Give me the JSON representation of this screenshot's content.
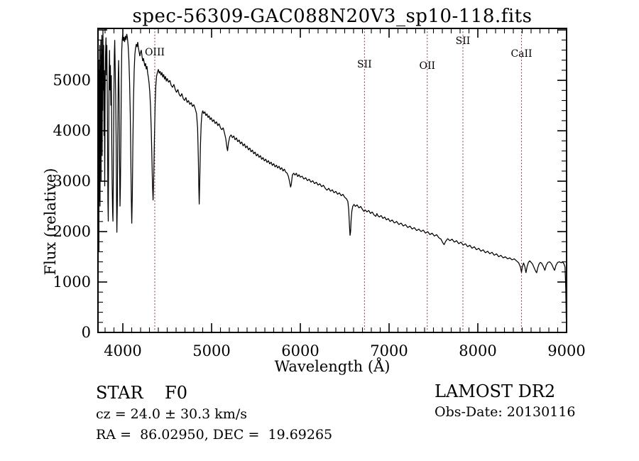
{
  "plot": {
    "title": "spec-56309-GAC088N20V3_sp10-118.fits",
    "xlabel": "Wavelength (Å)",
    "ylabel": "Flux (relative)"
  },
  "info": {
    "class_line": "STAR    F0",
    "survey_line": "LAMOST DR2",
    "cz_line": "cz = 24.0 ± 30.3 km/s",
    "obsdate_line": "Obs-Date: 20130116",
    "radec_line": "RA =  86.02950, DEC =  19.69265"
  },
  "colors": {
    "spectrum": "#000000",
    "axis": "#000000",
    "marker_line": "#8a4040",
    "marker_text": "#000000",
    "background": "#ffffff"
  },
  "chart_data": {
    "type": "line",
    "title": "spec-56309-GAC088N20V3_sp10-118.fits",
    "xlabel": "Wavelength (Å)",
    "ylabel": "Flux (relative)",
    "xlim": [
      3720,
      9000
    ],
    "ylim": [
      0,
      6030
    ],
    "x_ticks": [
      4000,
      5000,
      6000,
      7000,
      8000,
      9000
    ],
    "x_minor_step": 100,
    "y_ticks": [
      0,
      1000,
      2000,
      3000,
      4000,
      5000
    ],
    "y_minor_step": 200,
    "grid": false,
    "legend": null,
    "line_markers": [
      {
        "label": "OIII",
        "wavelength": 4360,
        "label_y": 78
      },
      {
        "label": "SII",
        "wavelength": 6723,
        "label_y": 95
      },
      {
        "label": "OII",
        "wavelength": 7430,
        "label_y": 97
      },
      {
        "label": "SII",
        "wavelength": 7832,
        "label_y": 62
      },
      {
        "label": "CaII",
        "wavelength": 8492,
        "label_y": 80
      }
    ],
    "spectrum": [
      [
        3720,
        3600
      ],
      [
        3722,
        1250
      ],
      [
        3724,
        4800
      ],
      [
        3726,
        2000
      ],
      [
        3728,
        5400
      ],
      [
        3730,
        1600
      ],
      [
        3732,
        4400
      ],
      [
        3734,
        2600
      ],
      [
        3736,
        5200
      ],
      [
        3738,
        3200
      ],
      [
        3740,
        5700
      ],
      [
        3743,
        2500
      ],
      [
        3746,
        5300
      ],
      [
        3749,
        3800
      ],
      [
        3752,
        5800
      ],
      [
        3755,
        3000
      ],
      [
        3758,
        5500
      ],
      [
        3761,
        4100
      ],
      [
        3764,
        5900
      ],
      [
        3767,
        3500
      ],
      [
        3770,
        5600
      ],
      [
        3773,
        4400
      ],
      [
        3776,
        6000
      ],
      [
        3780,
        4800
      ],
      [
        3784,
        5700
      ],
      [
        3788,
        3900
      ],
      [
        3792,
        5200
      ],
      [
        3796,
        2900
      ],
      [
        3800,
        4600
      ],
      [
        3805,
        5500
      ],
      [
        3810,
        5850
      ],
      [
        3815,
        5100
      ],
      [
        3820,
        5700
      ],
      [
        3826,
        4300
      ],
      [
        3832,
        2600
      ],
      [
        3836,
        2200
      ],
      [
        3840,
        3600
      ],
      [
        3845,
        5000
      ],
      [
        3850,
        5600
      ],
      [
        3855,
        4800
      ],
      [
        3860,
        5300
      ],
      [
        3865,
        4500
      ],
      [
        3870,
        5100
      ],
      [
        3875,
        3800
      ],
      [
        3880,
        2900
      ],
      [
        3885,
        2400
      ],
      [
        3889,
        2200
      ],
      [
        3894,
        3400
      ],
      [
        3899,
        4700
      ],
      [
        3904,
        5500
      ],
      [
        3909,
        5800
      ],
      [
        3914,
        5200
      ],
      [
        3919,
        4700
      ],
      [
        3924,
        3900
      ],
      [
        3929,
        2700
      ],
      [
        3933,
        1980
      ],
      [
        3938,
        2600
      ],
      [
        3943,
        4000
      ],
      [
        3948,
        5000
      ],
      [
        3953,
        5400
      ],
      [
        3958,
        4600
      ],
      [
        3963,
        3400
      ],
      [
        3968,
        2500
      ],
      [
        3973,
        2900
      ],
      [
        3978,
        3900
      ],
      [
        3983,
        5000
      ],
      [
        3988,
        5600
      ],
      [
        3993,
        5800
      ],
      [
        3998,
        5900
      ],
      [
        4005,
        5780
      ],
      [
        4012,
        5860
      ],
      [
        4020,
        5760
      ],
      [
        4028,
        5880
      ],
      [
        4036,
        5800
      ],
      [
        4044,
        5920
      ],
      [
        4052,
        5840
      ],
      [
        4060,
        5680
      ],
      [
        4068,
        5420
      ],
      [
        4076,
        4980
      ],
      [
        4084,
        4300
      ],
      [
        4090,
        3400
      ],
      [
        4096,
        2600
      ],
      [
        4101,
        2160
      ],
      [
        4107,
        2750
      ],
      [
        4113,
        3700
      ],
      [
        4120,
        4600
      ],
      [
        4128,
        5200
      ],
      [
        4136,
        5520
      ],
      [
        4144,
        5650
      ],
      [
        4152,
        5720
      ],
      [
        4160,
        5660
      ],
      [
        4168,
        5760
      ],
      [
        4176,
        5640
      ],
      [
        4184,
        5560
      ],
      [
        4192,
        5480
      ],
      [
        4200,
        5560
      ],
      [
        4208,
        5600
      ],
      [
        4216,
        5480
      ],
      [
        4224,
        5380
      ],
      [
        4232,
        5440
      ],
      [
        4240,
        5360
      ],
      [
        4248,
        5280
      ],
      [
        4256,
        5340
      ],
      [
        4264,
        5220
      ],
      [
        4272,
        5280
      ],
      [
        4280,
        5140
      ],
      [
        4288,
        5060
      ],
      [
        4296,
        4940
      ],
      [
        4304,
        4760
      ],
      [
        4312,
        4480
      ],
      [
        4320,
        4040
      ],
      [
        4328,
        3420
      ],
      [
        4334,
        2920
      ],
      [
        4341,
        2620
      ],
      [
        4348,
        3080
      ],
      [
        4356,
        3840
      ],
      [
        4364,
        4520
      ],
      [
        4372,
        4900
      ],
      [
        4380,
        5080
      ],
      [
        4390,
        5160
      ],
      [
        4400,
        5220
      ],
      [
        4410,
        5140
      ],
      [
        4420,
        5180
      ],
      [
        4430,
        5100
      ],
      [
        4440,
        5160
      ],
      [
        4450,
        5060
      ],
      [
        4460,
        5120
      ],
      [
        4470,
        5020
      ],
      [
        4480,
        5080
      ],
      [
        4490,
        4980
      ],
      [
        4500,
        5040
      ],
      [
        4515,
        4960
      ],
      [
        4530,
        5000
      ],
      [
        4545,
        4900
      ],
      [
        4560,
        4860
      ],
      [
        4575,
        4920
      ],
      [
        4590,
        4820
      ],
      [
        4605,
        4760
      ],
      [
        4620,
        4820
      ],
      [
        4635,
        4720
      ],
      [
        4650,
        4680
      ],
      [
        4665,
        4740
      ],
      [
        4680,
        4640
      ],
      [
        4695,
        4600
      ],
      [
        4710,
        4660
      ],
      [
        4725,
        4560
      ],
      [
        4740,
        4600
      ],
      [
        4755,
        4520
      ],
      [
        4770,
        4560
      ],
      [
        4785,
        4480
      ],
      [
        4800,
        4520
      ],
      [
        4815,
        4440
      ],
      [
        4830,
        4340
      ],
      [
        4842,
        4060
      ],
      [
        4850,
        3480
      ],
      [
        4856,
        2900
      ],
      [
        4861,
        2540
      ],
      [
        4867,
        3060
      ],
      [
        4874,
        3700
      ],
      [
        4882,
        4120
      ],
      [
        4890,
        4320
      ],
      [
        4900,
        4400
      ],
      [
        4912,
        4340
      ],
      [
        4924,
        4380
      ],
      [
        4936,
        4300
      ],
      [
        4948,
        4340
      ],
      [
        4960,
        4260
      ],
      [
        4972,
        4300
      ],
      [
        4984,
        4220
      ],
      [
        4996,
        4260
      ],
      [
        5010,
        4180
      ],
      [
        5025,
        4220
      ],
      [
        5040,
        4140
      ],
      [
        5055,
        4180
      ],
      [
        5070,
        4100
      ],
      [
        5085,
        4140
      ],
      [
        5100,
        4060
      ],
      [
        5115,
        4020
      ],
      [
        5130,
        4060
      ],
      [
        5145,
        3960
      ],
      [
        5160,
        3840
      ],
      [
        5172,
        3680
      ],
      [
        5180,
        3600
      ],
      [
        5190,
        3760
      ],
      [
        5205,
        3880
      ],
      [
        5220,
        3920
      ],
      [
        5235,
        3860
      ],
      [
        5250,
        3900
      ],
      [
        5265,
        3820
      ],
      [
        5280,
        3860
      ],
      [
        5295,
        3780
      ],
      [
        5310,
        3820
      ],
      [
        5325,
        3740
      ],
      [
        5340,
        3780
      ],
      [
        5355,
        3700
      ],
      [
        5370,
        3740
      ],
      [
        5385,
        3660
      ],
      [
        5400,
        3700
      ],
      [
        5415,
        3620
      ],
      [
        5430,
        3660
      ],
      [
        5445,
        3580
      ],
      [
        5460,
        3620
      ],
      [
        5475,
        3540
      ],
      [
        5490,
        3580
      ],
      [
        5505,
        3500
      ],
      [
        5520,
        3540
      ],
      [
        5535,
        3470
      ],
      [
        5550,
        3510
      ],
      [
        5565,
        3430
      ],
      [
        5580,
        3470
      ],
      [
        5595,
        3400
      ],
      [
        5610,
        3440
      ],
      [
        5625,
        3370
      ],
      [
        5640,
        3410
      ],
      [
        5655,
        3340
      ],
      [
        5670,
        3380
      ],
      [
        5685,
        3310
      ],
      [
        5700,
        3350
      ],
      [
        5715,
        3280
      ],
      [
        5730,
        3320
      ],
      [
        5745,
        3260
      ],
      [
        5760,
        3300
      ],
      [
        5775,
        3230
      ],
      [
        5790,
        3270
      ],
      [
        5805,
        3200
      ],
      [
        5820,
        3240
      ],
      [
        5835,
        3180
      ],
      [
        5850,
        3160
      ],
      [
        5865,
        3100
      ],
      [
        5880,
        2980
      ],
      [
        5890,
        2880
      ],
      [
        5898,
        2940
      ],
      [
        5910,
        3120
      ],
      [
        5925,
        3160
      ],
      [
        5940,
        3120
      ],
      [
        5955,
        3160
      ],
      [
        5970,
        3090
      ],
      [
        5985,
        3130
      ],
      [
        6000,
        3080
      ],
      [
        6020,
        3100
      ],
      [
        6040,
        3040
      ],
      [
        6060,
        3070
      ],
      [
        6080,
        3010
      ],
      [
        6100,
        3040
      ],
      [
        6120,
        2980
      ],
      [
        6140,
        3010
      ],
      [
        6160,
        2950
      ],
      [
        6180,
        2980
      ],
      [
        6200,
        2920
      ],
      [
        6220,
        2950
      ],
      [
        6240,
        2890
      ],
      [
        6260,
        2920
      ],
      [
        6280,
        2860
      ],
      [
        6300,
        2820
      ],
      [
        6320,
        2860
      ],
      [
        6340,
        2800
      ],
      [
        6360,
        2830
      ],
      [
        6380,
        2770
      ],
      [
        6400,
        2800
      ],
      [
        6420,
        2740
      ],
      [
        6440,
        2770
      ],
      [
        6460,
        2710
      ],
      [
        6480,
        2740
      ],
      [
        6500,
        2680
      ],
      [
        6520,
        2650
      ],
      [
        6535,
        2600
      ],
      [
        6545,
        2440
      ],
      [
        6553,
        2150
      ],
      [
        6560,
        1920
      ],
      [
        6566,
        2000
      ],
      [
        6572,
        2220
      ],
      [
        6580,
        2400
      ],
      [
        6590,
        2500
      ],
      [
        6605,
        2540
      ],
      [
        6620,
        2500
      ],
      [
        6640,
        2530
      ],
      [
        6660,
        2470
      ],
      [
        6680,
        2500
      ],
      [
        6700,
        2440
      ],
      [
        6717,
        2400
      ],
      [
        6731,
        2430
      ],
      [
        6750,
        2390
      ],
      [
        6770,
        2420
      ],
      [
        6790,
        2360
      ],
      [
        6810,
        2390
      ],
      [
        6830,
        2330
      ],
      [
        6850,
        2300
      ],
      [
        6862,
        2360
      ],
      [
        6872,
        2320
      ],
      [
        6890,
        2290
      ],
      [
        6910,
        2320
      ],
      [
        6930,
        2260
      ],
      [
        6950,
        2290
      ],
      [
        6970,
        2230
      ],
      [
        6990,
        2260
      ],
      [
        7010,
        2200
      ],
      [
        7035,
        2230
      ],
      [
        7060,
        2170
      ],
      [
        7085,
        2200
      ],
      [
        7110,
        2140
      ],
      [
        7135,
        2170
      ],
      [
        7160,
        2110
      ],
      [
        7185,
        2140
      ],
      [
        7210,
        2080
      ],
      [
        7235,
        2110
      ],
      [
        7260,
        2050
      ],
      [
        7285,
        2080
      ],
      [
        7310,
        2020
      ],
      [
        7335,
        2050
      ],
      [
        7360,
        2000
      ],
      [
        7385,
        2030
      ],
      [
        7410,
        1970
      ],
      [
        7435,
        2000
      ],
      [
        7460,
        1940
      ],
      [
        7485,
        1970
      ],
      [
        7510,
        1910
      ],
      [
        7535,
        1940
      ],
      [
        7560,
        1880
      ],
      [
        7585,
        1850
      ],
      [
        7605,
        1780
      ],
      [
        7620,
        1740
      ],
      [
        7635,
        1800
      ],
      [
        7660,
        1860
      ],
      [
        7685,
        1820
      ],
      [
        7710,
        1850
      ],
      [
        7735,
        1790
      ],
      [
        7760,
        1820
      ],
      [
        7785,
        1760
      ],
      [
        7810,
        1790
      ],
      [
        7835,
        1730
      ],
      [
        7860,
        1760
      ],
      [
        7885,
        1700
      ],
      [
        7910,
        1730
      ],
      [
        7935,
        1670
      ],
      [
        7960,
        1700
      ],
      [
        7985,
        1640
      ],
      [
        8010,
        1670
      ],
      [
        8035,
        1610
      ],
      [
        8060,
        1640
      ],
      [
        8085,
        1580
      ],
      [
        8110,
        1610
      ],
      [
        8135,
        1560
      ],
      [
        8160,
        1590
      ],
      [
        8185,
        1530
      ],
      [
        8210,
        1560
      ],
      [
        8235,
        1500
      ],
      [
        8260,
        1530
      ],
      [
        8285,
        1480
      ],
      [
        8310,
        1500
      ],
      [
        8335,
        1460
      ],
      [
        8360,
        1480
      ],
      [
        8385,
        1440
      ],
      [
        8410,
        1460
      ],
      [
        8435,
        1420
      ],
      [
        8460,
        1380
      ],
      [
        8480,
        1300
      ],
      [
        8492,
        1190
      ],
      [
        8500,
        1290
      ],
      [
        8515,
        1380
      ],
      [
        8530,
        1300
      ],
      [
        8542,
        1180
      ],
      [
        8554,
        1300
      ],
      [
        8570,
        1390
      ],
      [
        8585,
        1420
      ],
      [
        8600,
        1390
      ],
      [
        8615,
        1360
      ],
      [
        8630,
        1300
      ],
      [
        8645,
        1240
      ],
      [
        8662,
        1180
      ],
      [
        8675,
        1280
      ],
      [
        8690,
        1360
      ],
      [
        8705,
        1390
      ],
      [
        8720,
        1370
      ],
      [
        8740,
        1300
      ],
      [
        8755,
        1230
      ],
      [
        8770,
        1330
      ],
      [
        8790,
        1390
      ],
      [
        8810,
        1400
      ],
      [
        8830,
        1360
      ],
      [
        8850,
        1280
      ],
      [
        8865,
        1230
      ],
      [
        8880,
        1330
      ],
      [
        8900,
        1390
      ],
      [
        8920,
        1400
      ],
      [
        8940,
        1380
      ],
      [
        8955,
        1400
      ],
      [
        8970,
        1360
      ],
      [
        8982,
        1300
      ],
      [
        8990,
        900
      ],
      [
        8996,
        300
      ],
      [
        9000,
        60
      ]
    ]
  }
}
